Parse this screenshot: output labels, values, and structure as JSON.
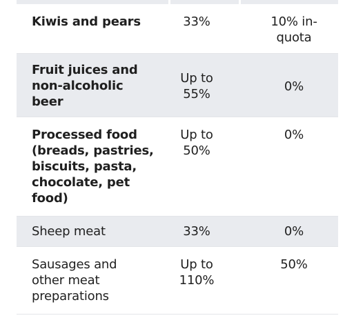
{
  "rows": [
    {
      "product": "Kiwis and pears",
      "tariff": "33%",
      "new_tariff": "10% in-quota",
      "emphasis": true
    },
    {
      "product": "Fruit juices and non-alcoholic beer",
      "tariff": "Up to 55%",
      "new_tariff": "0%",
      "emphasis": true
    },
    {
      "product": "Processed food (breads, pastries, biscuits, pasta, chocolate, pet food)",
      "tariff": "Up to 50%",
      "new_tariff": "0%",
      "emphasis": true
    },
    {
      "product": "Sheep meat",
      "tariff": "33%",
      "new_tariff": "0%",
      "emphasis": false
    },
    {
      "product": "Sausages and other meat preparations",
      "tariff": "Up to 110%",
      "new_tariff": "50%",
      "emphasis": false
    }
  ]
}
